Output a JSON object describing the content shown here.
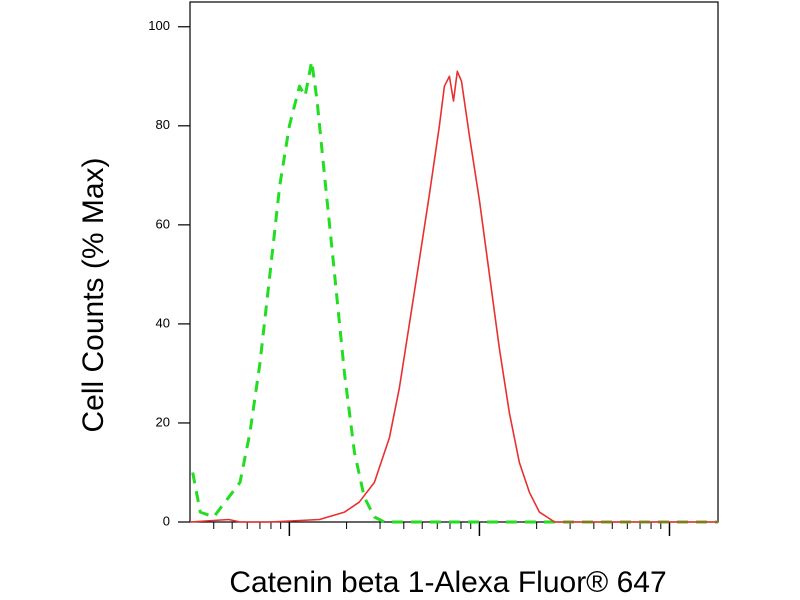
{
  "chart_data": {
    "type": "line",
    "x_label": "Catenin beta 1-Alexa Fluor® 647",
    "y_label": "Cell Counts (% Max)",
    "xlog": true,
    "xlim": [
      30,
      18000
    ],
    "xticks": [
      100,
      1000,
      10000
    ],
    "xminorticks": [
      40,
      50,
      60,
      70,
      80,
      90,
      200,
      300,
      400,
      500,
      600,
      700,
      800,
      900,
      2000,
      3000,
      4000,
      5000,
      6000,
      7000,
      8000,
      9000
    ],
    "ylim": [
      0,
      105
    ],
    "yticks": [
      0,
      20,
      40,
      60,
      80,
      100
    ],
    "series": [
      {
        "color": "#22dd22",
        "dashed": true,
        "x": [
          31,
          34,
          40,
          48,
          55,
          62,
          70,
          79,
          89,
          100,
          113,
          121,
          131,
          140,
          153,
          173,
          195,
          220,
          248,
          280,
          316,
          18000
        ],
        "values": [
          10,
          2,
          1,
          5,
          8,
          18,
          32,
          50,
          68,
          80,
          88,
          86,
          93,
          85,
          70,
          50,
          30,
          14,
          5,
          1,
          0,
          0
        ]
      },
      {
        "color": "#e83030",
        "dashed": false,
        "x": [
          30,
          48,
          55,
          79,
          144,
          195,
          233,
          280,
          336,
          379,
          428,
          483,
          545,
          616,
          654,
          695,
          730,
          765,
          805,
          886,
          1000,
          1129,
          1274,
          1438,
          1623,
          1833,
          2069,
          2485,
          18000
        ],
        "values": [
          0,
          0.5,
          0,
          0,
          0.5,
          2,
          4,
          8,
          17,
          27,
          40,
          53,
          66,
          80,
          88,
          90,
          85,
          91,
          89,
          78,
          65,
          50,
          35,
          22,
          12,
          6,
          2,
          0,
          0
        ]
      }
    ]
  }
}
